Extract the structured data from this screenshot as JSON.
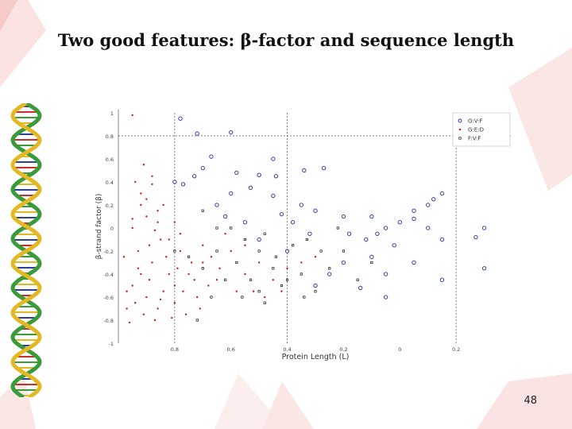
{
  "slide": {
    "title": "Two good features: β-factor and sequence length",
    "page_number": "48"
  },
  "colors": {
    "series_a": "#1f2fa8",
    "series_b": "#cc1f1f",
    "series_c": "#111111",
    "guide": "#555555"
  },
  "chart_data": {
    "type": "scatter",
    "title": "",
    "xlabel": "Protein Length (L)",
    "ylabel": "β-strand factor (β)",
    "x_tick_labels": [
      "0.8",
      "0.6",
      "0.4",
      "0.2",
      "0",
      "0.2"
    ],
    "y_tick_labels": [
      "1",
      "0.8",
      "0.6",
      "0.4",
      "0.2",
      "0",
      "-0.2",
      "-0.4",
      "-0.6",
      "-0.8",
      "-1"
    ],
    "x_ticks": [
      0.2,
      0.4,
      0.6,
      0.8,
      1.0,
      1.2
    ],
    "y_ticks": [
      1,
      0.8,
      0.6,
      0.4,
      0.2,
      0,
      -0.2,
      -0.4,
      -0.6,
      -0.8,
      -1
    ],
    "xlim": [
      0,
      1.4
    ],
    "ylim": [
      -1,
      1
    ],
    "legend": {
      "position": "top-right",
      "entries": [
        "G:V:F",
        "G:E:D",
        "F:V:F"
      ]
    },
    "reference_lines": {
      "x": [
        0.2,
        0.6,
        1.2
      ],
      "y": [
        0.8
      ]
    },
    "series": [
      {
        "name": "G:V:F",
        "marker": "circle",
        "points": [
          [
            0.22,
            0.95
          ],
          [
            0.4,
            0.83
          ],
          [
            0.28,
            0.82
          ],
          [
            0.55,
            0.6
          ],
          [
            0.33,
            0.62
          ],
          [
            0.73,
            0.52
          ],
          [
            0.42,
            0.48
          ],
          [
            0.5,
            0.46
          ],
          [
            0.66,
            0.5
          ],
          [
            0.4,
            0.3
          ],
          [
            0.55,
            0.28
          ],
          [
            0.58,
            0.12
          ],
          [
            0.65,
            0.2
          ],
          [
            0.7,
            0.15
          ],
          [
            0.8,
            0.1
          ],
          [
            0.82,
            -0.05
          ],
          [
            0.9,
            0.1
          ],
          [
            0.95,
            0.0
          ],
          [
            1.0,
            0.05
          ],
          [
            1.05,
            0.08
          ],
          [
            1.1,
            0.0
          ],
          [
            1.15,
            -0.1
          ],
          [
            1.27,
            -0.08
          ],
          [
            1.3,
            0.0
          ],
          [
            0.98,
            -0.15
          ],
          [
            0.9,
            -0.25
          ],
          [
            0.8,
            -0.3
          ],
          [
            0.75,
            -0.4
          ],
          [
            0.86,
            -0.52
          ],
          [
            0.95,
            -0.4
          ],
          [
            1.05,
            -0.3
          ],
          [
            1.15,
            -0.45
          ],
          [
            1.3,
            -0.35
          ],
          [
            0.95,
            -0.6
          ],
          [
            0.7,
            -0.5
          ],
          [
            0.6,
            -0.2
          ],
          [
            0.5,
            -0.1
          ],
          [
            0.45,
            0.05
          ],
          [
            0.38,
            0.1
          ],
          [
            0.35,
            0.2
          ],
          [
            0.47,
            0.35
          ],
          [
            0.56,
            0.45
          ],
          [
            0.3,
            0.52
          ],
          [
            0.27,
            0.45
          ],
          [
            0.2,
            0.4
          ],
          [
            0.23,
            0.38
          ],
          [
            1.1,
            0.2
          ],
          [
            1.12,
            0.25
          ],
          [
            1.05,
            0.15
          ],
          [
            1.15,
            0.3
          ],
          [
            0.88,
            -0.1
          ],
          [
            0.92,
            -0.05
          ],
          [
            0.62,
            0.05
          ],
          [
            0.68,
            -0.05
          ]
        ]
      },
      {
        "name": "G:E:D",
        "marker": "dot",
        "points": [
          [
            0.05,
            0.98
          ],
          [
            0.12,
            0.45
          ],
          [
            0.08,
            0.3
          ],
          [
            0.1,
            0.1
          ],
          [
            0.05,
            0.0
          ],
          [
            0.15,
            -0.1
          ],
          [
            0.07,
            -0.2
          ],
          [
            0.12,
            -0.3
          ],
          [
            0.18,
            -0.4
          ],
          [
            0.05,
            -0.5
          ],
          [
            0.1,
            -0.6
          ],
          [
            0.14,
            -0.7
          ],
          [
            0.2,
            -0.5
          ],
          [
            0.25,
            -0.4
          ],
          [
            0.3,
            -0.3
          ],
          [
            0.35,
            -0.45
          ],
          [
            0.28,
            -0.6
          ],
          [
            0.22,
            -0.2
          ],
          [
            0.18,
            -0.1
          ],
          [
            0.08,
            -0.4
          ],
          [
            0.03,
            -0.55
          ],
          [
            0.16,
            -0.55
          ],
          [
            0.11,
            -0.45
          ],
          [
            0.06,
            -0.65
          ],
          [
            0.09,
            -0.75
          ],
          [
            0.13,
            -0.8
          ],
          [
            0.04,
            -0.82
          ],
          [
            0.2,
            -0.65
          ],
          [
            0.24,
            -0.75
          ],
          [
            0.26,
            -0.3
          ],
          [
            0.3,
            -0.15
          ],
          [
            0.32,
            -0.5
          ],
          [
            0.36,
            -0.35
          ],
          [
            0.4,
            -0.2
          ],
          [
            0.42,
            -0.55
          ],
          [
            0.45,
            -0.4
          ],
          [
            0.5,
            -0.3
          ],
          [
            0.55,
            -0.45
          ],
          [
            0.6,
            -0.35
          ],
          [
            0.65,
            -0.3
          ],
          [
            0.7,
            -0.25
          ],
          [
            0.16,
            0.2
          ],
          [
            0.14,
            0.15
          ],
          [
            0.2,
            0.05
          ],
          [
            0.22,
            -0.05
          ],
          [
            0.1,
            0.25
          ],
          [
            0.08,
            0.2
          ],
          [
            0.05,
            0.08
          ],
          [
            0.13,
            -0.02
          ],
          [
            0.17,
            -0.25
          ],
          [
            0.21,
            -0.35
          ],
          [
            0.27,
            -0.45
          ],
          [
            0.33,
            -0.25
          ],
          [
            0.38,
            -0.05
          ],
          [
            0.45,
            -0.15
          ],
          [
            0.48,
            -0.55
          ],
          [
            0.52,
            -0.6
          ],
          [
            0.58,
            -0.55
          ],
          [
            0.07,
            -0.35
          ],
          [
            0.11,
            -0.15
          ],
          [
            0.02,
            -0.25
          ],
          [
            0.03,
            -0.7
          ],
          [
            0.15,
            -0.62
          ],
          [
            0.19,
            -0.78
          ],
          [
            0.23,
            -0.55
          ],
          [
            0.29,
            -0.7
          ],
          [
            0.12,
            0.38
          ],
          [
            0.09,
            0.55
          ],
          [
            0.06,
            0.4
          ],
          [
            0.14,
            0.05
          ]
        ]
      },
      {
        "name": "F:V:F",
        "marker": "square",
        "points": [
          [
            0.3,
            0.15
          ],
          [
            0.4,
            0.0
          ],
          [
            0.45,
            -0.1
          ],
          [
            0.5,
            -0.2
          ],
          [
            0.55,
            -0.35
          ],
          [
            0.6,
            -0.45
          ],
          [
            0.65,
            -0.4
          ],
          [
            0.7,
            -0.55
          ],
          [
            0.5,
            -0.55
          ],
          [
            0.42,
            -0.3
          ],
          [
            0.35,
            -0.2
          ],
          [
            0.3,
            -0.35
          ],
          [
            0.25,
            -0.25
          ],
          [
            0.35,
            0.0
          ],
          [
            0.52,
            -0.05
          ],
          [
            0.62,
            -0.15
          ],
          [
            0.66,
            -0.6
          ],
          [
            0.75,
            -0.35
          ],
          [
            0.8,
            -0.2
          ],
          [
            0.85,
            -0.45
          ],
          [
            0.9,
            -0.3
          ],
          [
            0.47,
            -0.45
          ],
          [
            0.56,
            -0.25
          ],
          [
            0.58,
            -0.5
          ],
          [
            0.33,
            -0.6
          ],
          [
            0.28,
            -0.8
          ],
          [
            0.2,
            -0.2
          ],
          [
            0.38,
            -0.45
          ],
          [
            0.44,
            -0.6
          ],
          [
            0.52,
            -0.65
          ],
          [
            0.67,
            -0.1
          ],
          [
            0.72,
            -0.2
          ],
          [
            0.78,
            0.0
          ]
        ]
      }
    ]
  }
}
